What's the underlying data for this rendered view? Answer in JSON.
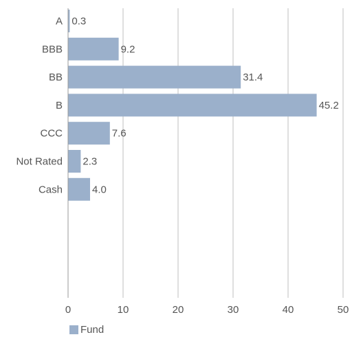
{
  "chart_data": {
    "type": "bar",
    "orientation": "horizontal",
    "categories": [
      "A",
      "BBB",
      "BB",
      "B",
      "CCC",
      "Not Rated",
      "Cash"
    ],
    "series": [
      {
        "name": "Fund",
        "values": [
          0.3,
          9.2,
          31.4,
          45.2,
          7.6,
          2.3,
          4.0
        ],
        "color": "#9bb0cb"
      }
    ],
    "data_labels": [
      "0.3",
      "9.2",
      "31.4",
      "45.2",
      "7.6",
      "2.3",
      "4.0"
    ],
    "xlim": [
      0,
      50
    ],
    "x_ticks": [
      0,
      10,
      20,
      30,
      40,
      50
    ],
    "grid": "vertical",
    "legend_position": "bottom-left"
  },
  "legend": {
    "label": "Fund",
    "color": "#9bb0cb"
  }
}
